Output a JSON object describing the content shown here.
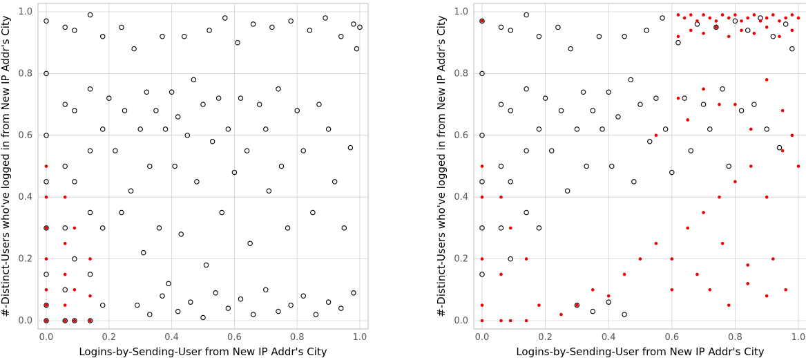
{
  "chart_data": [
    {
      "type": "scatter",
      "title": "",
      "xlabel": "Logins-by-Sending-User from New IP Addr's City",
      "ylabel": "#-Distinct-Users who've logged in from New IP Addr's City",
      "xlim": [
        0,
        1
      ],
      "ylim": [
        0,
        1
      ],
      "xticks": [
        "0.0",
        "0.2",
        "0.4",
        "0.6",
        "0.8",
        "1.0"
      ],
      "yticks": [
        "0.0",
        "0.2",
        "0.4",
        "0.6",
        "0.8",
        "1.0"
      ],
      "grid": true,
      "legend": "none",
      "series": [
        {
          "marker": "hollow-circle",
          "color": "#000000",
          "x": [
            0.0,
            0.0,
            0.0,
            0.0,
            0.0,
            0.0,
            0.0,
            0.0,
            0.06,
            0.06,
            0.06,
            0.06,
            0.06,
            0.06,
            0.09,
            0.09,
            0.09,
            0.09,
            0.09,
            0.14,
            0.14,
            0.14,
            0.14,
            0.14,
            0.14,
            0.18,
            0.18,
            0.18,
            0.18,
            0.2,
            0.22,
            0.24,
            0.24,
            0.25,
            0.27,
            0.28,
            0.3,
            0.31,
            0.32,
            0.33,
            0.35,
            0.36,
            0.37,
            0.38,
            0.39,
            0.4,
            0.41,
            0.42,
            0.43,
            0.44,
            0.45,
            0.47,
            0.48,
            0.5,
            0.51,
            0.52,
            0.53,
            0.55,
            0.56,
            0.57,
            0.58,
            0.6,
            0.61,
            0.62,
            0.64,
            0.65,
            0.66,
            0.68,
            0.7,
            0.71,
            0.72,
            0.74,
            0.75,
            0.77,
            0.78,
            0.8,
            0.82,
            0.84,
            0.85,
            0.87,
            0.89,
            0.9,
            0.92,
            0.94,
            0.95,
            0.97,
            0.98,
            0.99,
            1.0,
            0.29,
            0.33,
            0.37,
            0.42,
            0.46,
            0.5,
            0.54,
            0.58,
            0.62,
            0.66,
            0.7,
            0.74,
            0.78,
            0.82,
            0.86,
            0.9,
            0.94,
            0.98
          ],
          "y": [
            0.97,
            0.8,
            0.6,
            0.45,
            0.3,
            0.15,
            0.05,
            0.0,
            0.95,
            0.7,
            0.5,
            0.3,
            0.1,
            0.0,
            0.94,
            0.68,
            0.45,
            0.2,
            0.0,
            0.99,
            0.75,
            0.55,
            0.35,
            0.15,
            0.0,
            0.92,
            0.62,
            0.3,
            0.05,
            0.72,
            0.55,
            0.95,
            0.35,
            0.68,
            0.42,
            0.88,
            0.62,
            0.22,
            0.74,
            0.5,
            0.68,
            0.3,
            0.92,
            0.62,
            0.12,
            0.74,
            0.5,
            0.66,
            0.28,
            0.92,
            0.6,
            0.78,
            0.45,
            0.7,
            0.18,
            0.94,
            0.58,
            0.72,
            0.35,
            0.98,
            0.62,
            0.48,
            0.9,
            0.72,
            0.55,
            0.25,
            0.96,
            0.7,
            0.62,
            0.42,
            0.95,
            0.75,
            0.5,
            0.3,
            0.97,
            0.68,
            0.55,
            0.94,
            0.35,
            0.7,
            0.98,
            0.62,
            0.45,
            0.92,
            0.3,
            0.56,
            0.96,
            0.88,
            0.95,
            0.05,
            0.02,
            0.08,
            0.03,
            0.06,
            0.01,
            0.09,
            0.04,
            0.07,
            0.02,
            0.1,
            0.03,
            0.05,
            0.08,
            0.02,
            0.06,
            0.04,
            0.09
          ]
        },
        {
          "marker": "red-dot",
          "color": "#ee0000",
          "x": [
            0.0,
            0.0,
            0.0,
            0.0,
            0.0,
            0.0,
            0.0,
            0.06,
            0.06,
            0.06,
            0.06,
            0.06,
            0.09,
            0.09,
            0.09,
            0.14,
            0.14,
            0.14
          ],
          "y": [
            0.5,
            0.4,
            0.3,
            0.2,
            0.1,
            0.05,
            0.0,
            0.4,
            0.25,
            0.15,
            0.05,
            0.0,
            0.3,
            0.1,
            0.0,
            0.2,
            0.08,
            0.0
          ]
        }
      ]
    },
    {
      "type": "scatter",
      "title": "",
      "xlabel": "Logins-by-Sending-User from New IP Addr's City",
      "ylabel": "#-Distinct-Users who've logged in from New IP Addr's City",
      "xlim": [
        0,
        1
      ],
      "ylim": [
        0,
        1
      ],
      "xticks": [
        "0.0",
        "0.2",
        "0.4",
        "0.6",
        "0.8",
        "1.0"
      ],
      "yticks": [
        "0.0",
        "0.2",
        "0.4",
        "0.6",
        "0.8",
        "1.0"
      ],
      "grid": true,
      "legend": "none",
      "series": [
        {
          "marker": "hollow-circle",
          "color": "#000000",
          "x": [
            0.0,
            0.0,
            0.0,
            0.0,
            0.0,
            0.0,
            0.06,
            0.06,
            0.06,
            0.06,
            0.09,
            0.09,
            0.09,
            0.09,
            0.14,
            0.14,
            0.14,
            0.14,
            0.18,
            0.18,
            0.18,
            0.2,
            0.22,
            0.24,
            0.25,
            0.27,
            0.28,
            0.3,
            0.32,
            0.33,
            0.35,
            0.37,
            0.38,
            0.4,
            0.41,
            0.43,
            0.45,
            0.47,
            0.48,
            0.5,
            0.52,
            0.53,
            0.55,
            0.57,
            0.58,
            0.6,
            0.62,
            0.64,
            0.66,
            0.68,
            0.7,
            0.72,
            0.74,
            0.76,
            0.78,
            0.8,
            0.82,
            0.84,
            0.86,
            0.88,
            0.9,
            0.92,
            0.94,
            0.96,
            0.98,
            0.3,
            0.35,
            0.4,
            0.45
          ],
          "y": [
            0.97,
            0.8,
            0.6,
            0.45,
            0.3,
            0.15,
            0.95,
            0.7,
            0.5,
            0.3,
            0.94,
            0.68,
            0.45,
            0.2,
            0.99,
            0.75,
            0.55,
            0.35,
            0.92,
            0.62,
            0.3,
            0.72,
            0.55,
            0.95,
            0.68,
            0.42,
            0.88,
            0.62,
            0.74,
            0.5,
            0.68,
            0.92,
            0.62,
            0.74,
            0.5,
            0.66,
            0.92,
            0.78,
            0.45,
            0.7,
            0.94,
            0.58,
            0.72,
            0.98,
            0.62,
            0.48,
            0.9,
            0.72,
            0.55,
            0.96,
            0.7,
            0.62,
            0.95,
            0.75,
            0.5,
            0.97,
            0.68,
            0.94,
            0.7,
            0.98,
            0.62,
            0.92,
            0.56,
            0.96,
            0.88,
            0.05,
            0.03,
            0.06,
            0.02
          ]
        },
        {
          "marker": "red-dot",
          "color": "#ee0000",
          "x": [
            0.0,
            0.0,
            0.0,
            0.0,
            0.0,
            0.0,
            0.06,
            0.06,
            0.06,
            0.09,
            0.09,
            0.14,
            0.14,
            0.18,
            0.25,
            0.3,
            0.35,
            0.4,
            0.45,
            0.5,
            0.55,
            0.6,
            0.62,
            0.64,
            0.66,
            0.68,
            0.7,
            0.72,
            0.74,
            0.76,
            0.78,
            0.8,
            0.82,
            0.84,
            0.86,
            0.88,
            0.9,
            0.92,
            0.94,
            0.96,
            0.98,
            1.0,
            0.62,
            0.66,
            0.7,
            0.74,
            0.78,
            0.82,
            0.86,
            0.9,
            0.94,
            0.98,
            0.65,
            0.7,
            0.75,
            0.8,
            0.85,
            0.9,
            0.95,
            1.0,
            0.72,
            0.78,
            0.84,
            0.9,
            0.96,
            0.6,
            0.68,
            0.76,
            0.84,
            0.92,
            0.55,
            0.65,
            0.75,
            0.85,
            0.95,
            0.62,
            0.7,
            0.8,
            0.9,
            0.98
          ],
          "y": [
            0.97,
            0.5,
            0.4,
            0.2,
            0.05,
            0.0,
            0.4,
            0.15,
            0.0,
            0.3,
            0.0,
            0.2,
            0.0,
            0.05,
            0.02,
            0.05,
            0.1,
            0.08,
            0.15,
            0.2,
            0.25,
            0.1,
            0.99,
            0.98,
            0.99,
            0.97,
            0.99,
            0.98,
            0.97,
            0.99,
            0.98,
            0.99,
            0.97,
            0.98,
            0.99,
            0.97,
            0.98,
            0.99,
            0.97,
            0.98,
            0.99,
            0.98,
            0.92,
            0.94,
            0.93,
            0.95,
            0.92,
            0.94,
            0.93,
            0.95,
            0.92,
            0.94,
            0.3,
            0.35,
            0.4,
            0.45,
            0.5,
            0.4,
            0.55,
            0.5,
            0.1,
            0.05,
            0.12,
            0.08,
            0.1,
            0.2,
            0.15,
            0.25,
            0.18,
            0.2,
            0.6,
            0.65,
            0.7,
            0.62,
            0.68,
            0.72,
            0.75,
            0.7,
            0.78,
            0.6
          ]
        }
      ]
    }
  ]
}
